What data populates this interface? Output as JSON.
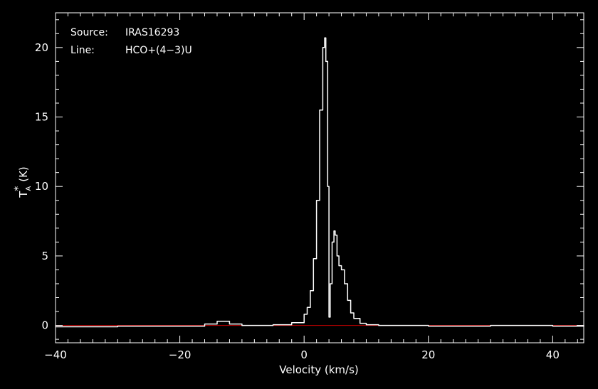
{
  "chart_data": {
    "type": "line",
    "xlabel": "Velocity (km/s)",
    "ylabel_main": "T",
    "ylabel_sub": "A",
    "ylabel_sup": "*",
    "ylabel_unit": "(K)",
    "xlim": [
      -40,
      45
    ],
    "ylim": [
      -1.25,
      22.5
    ],
    "xticks": [
      -40,
      -20,
      0,
      20,
      40
    ],
    "xtick_labels": [
      "−40",
      "−20",
      "0",
      "20",
      "40"
    ],
    "yticks": [
      0,
      5,
      10,
      15,
      20
    ],
    "ytick_labels": [
      "0",
      "5",
      "10",
      "15",
      "20"
    ],
    "grid": false,
    "annotations": {
      "source_label": "Source:",
      "source_value": "IRAS16293",
      "line_label": "Line:",
      "line_value": "HCO+(4−3)U"
    },
    "baseline": {
      "y": 0,
      "color": "#cc0000"
    },
    "series": [
      {
        "color": "#ffffff",
        "x": [
          -40,
          -30,
          -20,
          -16,
          -14,
          -12,
          -10,
          -5,
          -2,
          0,
          0.5,
          1.0,
          1.5,
          2.0,
          2.5,
          3.0,
          3.3,
          3.5,
          3.8,
          4.0,
          4.2,
          4.5,
          4.8,
          5.0,
          5.3,
          5.6,
          6.0,
          6.5,
          7.0,
          7.5,
          8.0,
          9.0,
          10,
          12,
          15,
          20,
          30,
          40,
          45
        ],
        "values": [
          -0.1,
          -0.05,
          -0.05,
          0.1,
          0.3,
          0.1,
          0.0,
          0.05,
          0.2,
          0.8,
          1.3,
          2.5,
          4.8,
          9.0,
          15.5,
          20.0,
          20.7,
          19.0,
          10.0,
          0.6,
          3.0,
          6.0,
          6.8,
          6.5,
          5.0,
          4.3,
          4.0,
          3.0,
          1.8,
          0.9,
          0.5,
          0.15,
          0.05,
          0.0,
          0.0,
          -0.05,
          0.0,
          -0.05,
          0.0
        ]
      }
    ]
  }
}
